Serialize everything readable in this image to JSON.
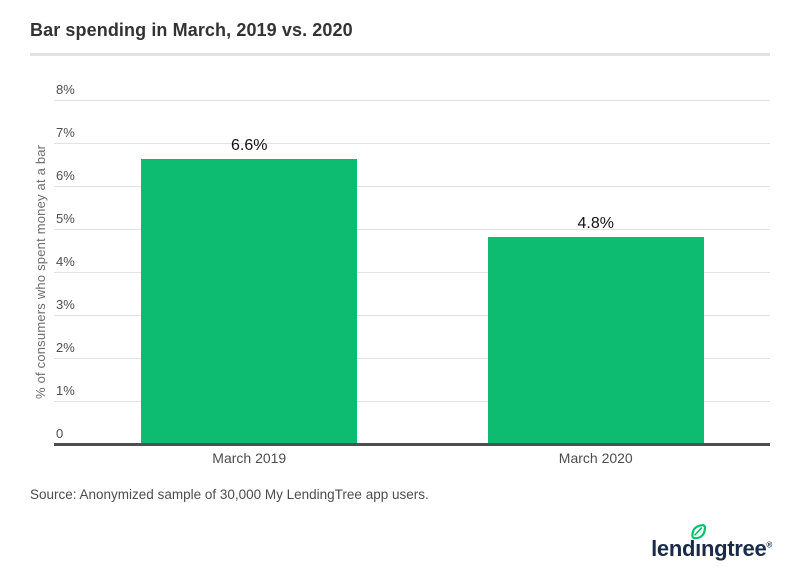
{
  "header": {
    "title": "Bar spending in March, 2019 vs. 2020"
  },
  "chart_data": {
    "type": "bar",
    "title": "Bar spending in March, 2019 vs. 2020",
    "categories": [
      "March 2019",
      "March 2020"
    ],
    "values": [
      6.6,
      4.8
    ],
    "value_labels": [
      "6.6%",
      "4.8%"
    ],
    "xlabel": "",
    "ylabel": "% of consumers who spent money at a bar",
    "ylim": [
      0,
      8
    ],
    "y_ticks": [
      {
        "value": 8,
        "label": "8%"
      },
      {
        "value": 7,
        "label": "7%"
      },
      {
        "value": 6,
        "label": "6%"
      },
      {
        "value": 5,
        "label": "5%"
      },
      {
        "value": 4,
        "label": "4%"
      },
      {
        "value": 3,
        "label": "3%"
      },
      {
        "value": 2,
        "label": "2%"
      },
      {
        "value": 1,
        "label": "1%"
      },
      {
        "value": 0,
        "label": "0"
      }
    ],
    "grid": true,
    "legend": false,
    "bar_color": "#0dbc71",
    "value_label_color": "#111111"
  },
  "footer": {
    "source": "Source: Anonymized sample of 30,000 My LendingTree app users.",
    "logo": {
      "text": "lendingtree",
      "trademark": "®",
      "navy": "#1a2b4a",
      "leaf_green": "#00c16e"
    }
  }
}
